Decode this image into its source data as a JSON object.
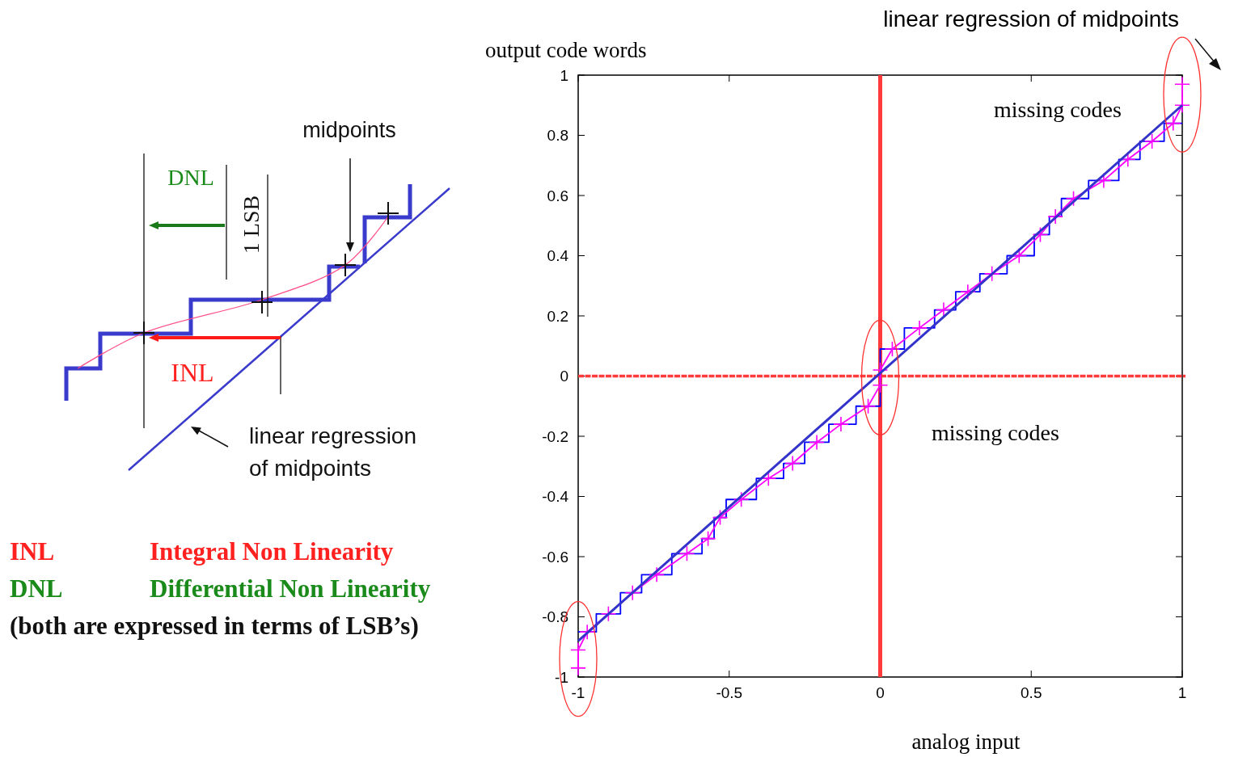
{
  "chart_data": [
    {
      "type": "other",
      "annotations": [
        "midpoints",
        "DNL",
        "1 LSB",
        "INL",
        "linear regression of midpoints",
        "INL",
        "Integral Non Linearity",
        "DNL",
        "Differential Non Linearity",
        "(both are expressed in terms of LSB’s)"
      ]
    },
    {
      "type": "step",
      "xlabel": "analog input",
      "ylabel": "output code words",
      "xlim": [
        -1,
        1
      ],
      "ylim": [
        -1,
        1
      ],
      "xticks": [
        -1,
        -0.5,
        0,
        0.5,
        1
      ],
      "yticks": [
        -1,
        -0.8,
        -0.6,
        -0.4,
        -0.2,
        0,
        0.2,
        0.4,
        0.6,
        0.8,
        1
      ],
      "series": [
        {
          "type": "step",
          "color": "#0000ff",
          "x": [
            -1,
            -0.94,
            -0.86,
            -0.79,
            -0.69,
            -0.59,
            -0.55,
            -0.51,
            -0.41,
            -0.32,
            -0.25,
            -0.17,
            -0.08,
            0,
            0.08,
            0.18,
            0.25,
            0.33,
            0.42,
            0.51,
            0.56,
            0.6,
            0.69,
            0.79,
            0.86,
            0.94,
            1
          ],
          "values": [
            -0.85,
            -0.79,
            -0.72,
            -0.66,
            -0.59,
            -0.54,
            -0.47,
            -0.41,
            -0.34,
            -0.29,
            -0.22,
            -0.16,
            -0.1,
            0.09,
            0.16,
            0.22,
            0.28,
            0.34,
            0.4,
            0.47,
            0.53,
            0.59,
            0.65,
            0.72,
            0.78,
            0.84,
            0.84
          ]
        },
        {
          "type": "line",
          "color": "#ff00ff",
          "marker": "cross",
          "x": [
            -1,
            -1,
            -0.97,
            -0.9,
            -0.82,
            -0.74,
            -0.64,
            -0.57,
            -0.53,
            -0.46,
            -0.37,
            -0.29,
            -0.21,
            -0.13,
            -0.04,
            0,
            0,
            0.04,
            0.13,
            0.21,
            0.29,
            0.37,
            0.46,
            0.53,
            0.58,
            0.64,
            0.74,
            0.82,
            0.9,
            0.97,
            1,
            1
          ],
          "values": [
            -0.97,
            -0.91,
            -0.85,
            -0.79,
            -0.72,
            -0.66,
            -0.59,
            -0.54,
            -0.47,
            -0.41,
            -0.34,
            -0.29,
            -0.22,
            -0.16,
            -0.1,
            -0.03,
            0.02,
            0.09,
            0.16,
            0.22,
            0.28,
            0.34,
            0.4,
            0.47,
            0.53,
            0.59,
            0.65,
            0.72,
            0.78,
            0.84,
            0.9,
            0.97
          ]
        },
        {
          "type": "line",
          "color": "#3333cc",
          "x": [
            -1,
            1
          ],
          "values": [
            -0.88,
            0.9
          ]
        }
      ],
      "ref_lines": [
        {
          "axis": "x",
          "value": 0,
          "color": "#ff3b3b"
        },
        {
          "axis": "y",
          "value": 0,
          "color": "#ff3b3b",
          "line_style": "dashed"
        }
      ],
      "annotations": [
        "linear regression of midpoints",
        "missing codes",
        "missing codes"
      ]
    }
  ]
}
